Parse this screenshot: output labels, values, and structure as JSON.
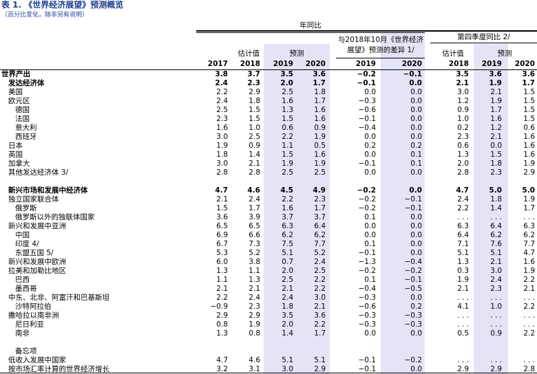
{
  "title": "表 1. 《世界经济展望》预测概览",
  "subtitle": "（百分比变化，除非另有说明）",
  "header": {
    "annual": "年同比",
    "diff": "与2018年10月《世界经济展望》预测的差异 1/",
    "q4": "第四季度同比 2/",
    "estimate": "估计值",
    "forecast": "预测",
    "years": [
      2017,
      2018,
      2019,
      2020,
      2019,
      2020,
      2018,
      2019,
      2020
    ]
  },
  "table": {
    "sections": [
      {
        "rows": [
          {
            "label": "世界产出",
            "level": 0,
            "bold": true,
            "values": [
              "3.8",
              "3.7",
              "3.5",
              "3.6",
              "−0.2",
              "−0.1",
              "3.5",
              "3.6",
              "3.6"
            ]
          },
          {
            "label": "发达经济体",
            "level": 1,
            "bold": true,
            "values": [
              "2.4",
              "2.3",
              "2.0",
              "1.7",
              "−0.1",
              "0.0",
              "2.1",
              "1.9",
              "1.7"
            ]
          },
          {
            "label": "美国",
            "level": 1,
            "values": [
              "2.2",
              "2.9",
              "2.5",
              "1.8",
              "0.0",
              "0.0",
              "3.0",
              "2.1",
              "1.5"
            ]
          },
          {
            "label": "欧元区",
            "level": 1,
            "values": [
              "2.4",
              "1.8",
              "1.6",
              "1.7",
              "−0.3",
              "0.0",
              "1.2",
              "1.9",
              "1.5"
            ]
          },
          {
            "label": "德国",
            "level": 2,
            "values": [
              "2.5",
              "1.5",
              "1.3",
              "1.6",
              "−0.6",
              "0.0",
              "0.9",
              "1.7",
              "1.5"
            ]
          },
          {
            "label": "法国",
            "level": 2,
            "values": [
              "2.3",
              "1.5",
              "1.5",
              "1.6",
              "−0.1",
              "0.0",
              "1.0",
              "1.6",
              "1.5"
            ]
          },
          {
            "label": "意大利",
            "level": 2,
            "values": [
              "1.6",
              "1.0",
              "0.6",
              "0.9",
              "−0.4",
              "0.0",
              "0.2",
              "1.2",
              "0.6"
            ]
          },
          {
            "label": "西班牙",
            "level": 2,
            "values": [
              "3.0",
              "2.5",
              "2.2",
              "1.9",
              "0.0",
              "0.0",
              "2.3",
              "2.1",
              "1.6"
            ]
          },
          {
            "label": "日本",
            "level": 1,
            "values": [
              "1.9",
              "0.9",
              "1.1",
              "0.5",
              "0.2",
              "0.2",
              "0.6",
              "0.0",
              "1.6"
            ]
          },
          {
            "label": "英国",
            "level": 1,
            "values": [
              "1.8",
              "1.4",
              "1.5",
              "1.6",
              "0.0",
              "0.1",
              "1.3",
              "1.5",
              "1.6"
            ]
          },
          {
            "label": "加拿大",
            "level": 1,
            "values": [
              "3.0",
              "2.1",
              "1.9",
              "1.9",
              "−0.1",
              "0.1",
              "2.0",
              "1.8",
              "1.9"
            ]
          },
          {
            "label": "其他发达经济体 3/",
            "level": 1,
            "values": [
              "2.8",
              "2.8",
              "2.5",
              "2.5",
              "0.0",
              "0.0",
              "2.8",
              "2.3",
              "2.9"
            ]
          }
        ]
      },
      {
        "rows": [
          {
            "label": "新兴市场和发展中经济体",
            "level": 1,
            "bold": true,
            "values": [
              "4.7",
              "4.6",
              "4.5",
              "4.9",
              "−0.2",
              "0.0",
              "4.7",
              "5.0",
              "5.0"
            ]
          },
          {
            "label": "独立国家联合体",
            "level": 1,
            "values": [
              "2.1",
              "2.4",
              "2.2",
              "2.3",
              "−0.2",
              "−0.1",
              "2.4",
              "1.8",
              "1.9"
            ]
          },
          {
            "label": "俄罗斯",
            "level": 2,
            "values": [
              "1.5",
              "1.7",
              "1.6",
              "1.7",
              "−0.2",
              "−0.1",
              "2.2",
              "1.4",
              "1.7"
            ]
          },
          {
            "label": "俄罗斯以外的独联体国家",
            "level": 2,
            "values": [
              "3.6",
              "3.9",
              "3.7",
              "3.7",
              "0.1",
              "0.0",
              ". . .",
              ". . .",
              ". . ."
            ]
          },
          {
            "label": "新兴和发展中亚洲",
            "level": 1,
            "values": [
              "6.5",
              "6.5",
              "6.3",
              "6.4",
              "0.0",
              "0.0",
              "6.3",
              "6.4",
              "6.3"
            ]
          },
          {
            "label": "中国",
            "level": 2,
            "values": [
              "6.9",
              "6.6",
              "6.2",
              "6.2",
              "0.0",
              "0.0",
              "6.4",
              "6.2",
              "6.2"
            ]
          },
          {
            "label": "印度 4/",
            "level": 2,
            "values": [
              "6.7",
              "7.3",
              "7.5",
              "7.7",
              "0.1",
              "0.0",
              "7.1",
              "7.6",
              "7.7"
            ]
          },
          {
            "label": "东盟五国 5/",
            "level": 2,
            "values": [
              "5.3",
              "5.2",
              "5.1",
              "5.2",
              "−0.1",
              "0.0",
              "5.1",
              "5.1",
              "4.7"
            ]
          },
          {
            "label": "新兴和发展中欧洲",
            "level": 1,
            "values": [
              "6.0",
              "3.8",
              "0.7",
              "2.4",
              "−1.3",
              "−0.4",
              "1.3",
              "2.1",
              "1.6"
            ]
          },
          {
            "label": "拉美和加勒比地区",
            "level": 1,
            "values": [
              "1.3",
              "1.1",
              "2.0",
              "2.5",
              "−0.2",
              "−0.2",
              "0.3",
              "3.0",
              "1.9"
            ]
          },
          {
            "label": "巴西",
            "level": 2,
            "values": [
              "1.1",
              "1.3",
              "2.5",
              "2.2",
              "0.1",
              "−0.1",
              "1.9",
              "2.4",
              "2.2"
            ]
          },
          {
            "label": "墨西哥",
            "level": 2,
            "values": [
              "2.1",
              "2.1",
              "2.1",
              "2.2",
              "−0.4",
              "−0.5",
              "2.1",
              "2.3",
              "2.1"
            ]
          },
          {
            "label": "中东、北非、阿富汗和巴基斯坦",
            "level": 1,
            "values": [
              "2.2",
              "2.4",
              "2.4",
              "3.0",
              "−0.3",
              "0.0",
              ". . .",
              ". . .",
              ". . ."
            ]
          },
          {
            "label": "沙特阿拉伯",
            "level": 2,
            "values": [
              "−0.9",
              "2.3",
              "1.8",
              "2.1",
              "−0.6",
              "0.2",
              "4.1",
              "1.0",
              "2.2"
            ]
          },
          {
            "label": "撒哈拉以南非洲",
            "level": 1,
            "values": [
              "2.9",
              "2.9",
              "3.5",
              "3.6",
              "−0.3",
              "−0.3",
              ". . .",
              ". . .",
              ". . ."
            ]
          },
          {
            "label": "尼日利亚",
            "level": 2,
            "values": [
              "0.8",
              "1.9",
              "2.0",
              "2.2",
              "−0.3",
              "−0.3",
              ". . .",
              ". . .",
              ". . ."
            ]
          },
          {
            "label": "南非",
            "level": 2,
            "values": [
              "1.3",
              "0.8",
              "1.4",
              "1.7",
              "0.0",
              "0.0",
              "0.5",
              "0.9",
              "2.2"
            ]
          }
        ]
      },
      {
        "heading": "备忘项",
        "rows": [
          {
            "label": "低收入发展中国家",
            "level": 1,
            "values": [
              "4.7",
              "4.6",
              "5.1",
              "5.1",
              "−0.1",
              "−0.2",
              ". . .",
              ". . .",
              ". . ."
            ]
          },
          {
            "label": "按市场汇率计算的世界经济增长",
            "level": 1,
            "values": [
              "3.2",
              "3.1",
              "3.0",
              "2.9",
              "−0.1",
              "0.0",
              "2.9",
              "2.9",
              "2.8"
            ]
          }
        ]
      }
    ]
  }
}
